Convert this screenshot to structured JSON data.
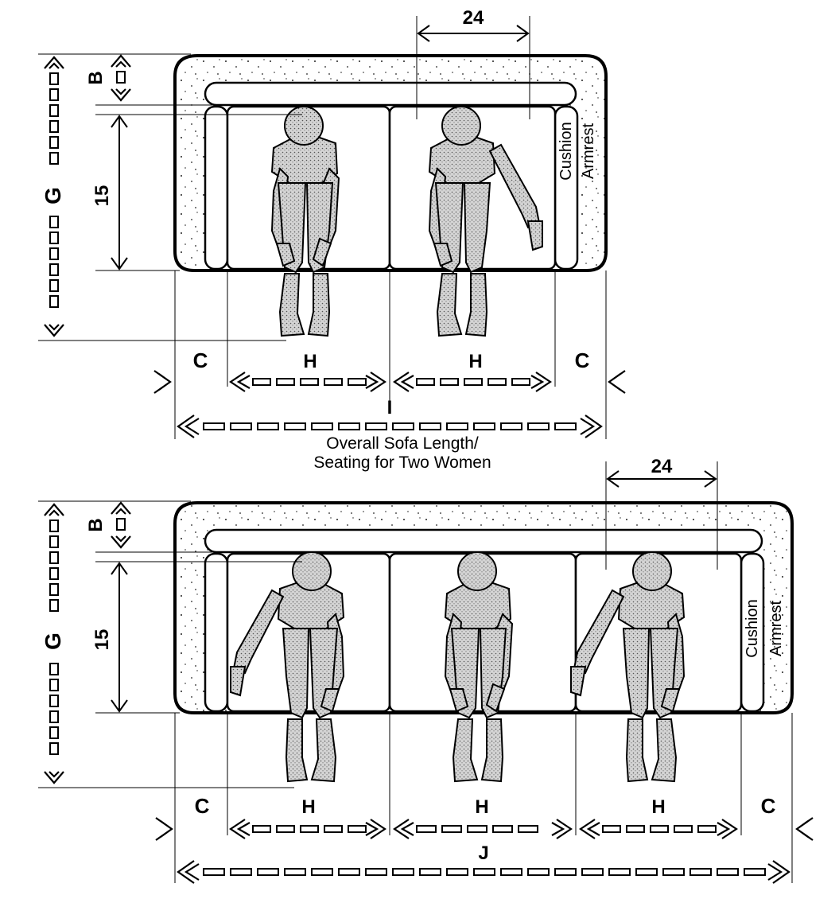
{
  "sofa_two": {
    "width_label": "24",
    "b_label": "B",
    "g_label": "G",
    "depth_label": "15",
    "cushion_label": "Cushion",
    "armrest_label": "Armrest",
    "c_left": "C",
    "c_right": "C",
    "h1": "H",
    "h2": "H",
    "i_label": "I",
    "caption_line1": "Overall Sofa Length/",
    "caption_line2": "Seating for Two Women"
  },
  "sofa_three": {
    "width_label": "24",
    "b_label": "B",
    "g_label": "G",
    "depth_label": "15",
    "cushion_label": "Cushion",
    "armrest_label": "Armrest",
    "c_left": "C",
    "c_right": "C",
    "h1": "H",
    "h2": "H",
    "h3": "H",
    "j_label": "J"
  },
  "colors": {
    "ink": "#000000",
    "paper": "#ffffff",
    "stipple": "#cfcfcf"
  }
}
